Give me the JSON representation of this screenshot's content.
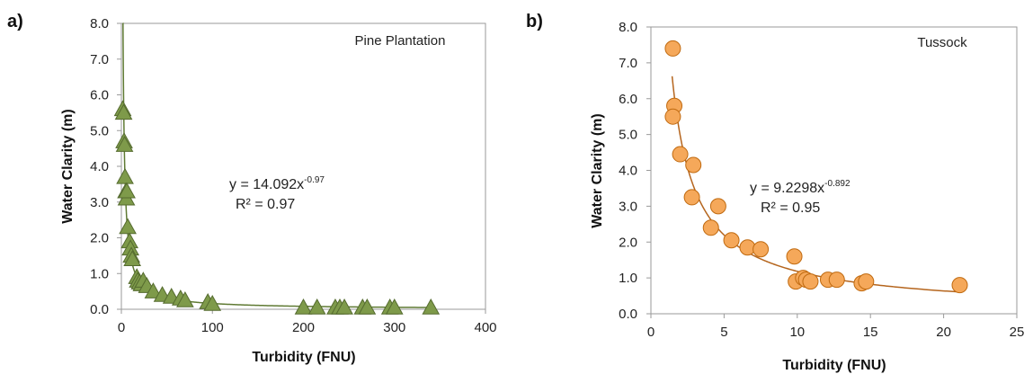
{
  "chart_data": [
    {
      "panel_label": "a)",
      "type": "scatter",
      "title": "",
      "annotation": "Pine Plantation",
      "xlabel": "Turbidity (FNU)",
      "ylabel": "Water Clarity (m)",
      "xlim": [
        0,
        400
      ],
      "ylim": [
        0,
        8
      ],
      "xticks": [
        0,
        100,
        200,
        300,
        400
      ],
      "yticks": [
        0,
        1,
        2,
        3,
        4,
        5,
        6,
        7,
        8
      ],
      "xtick_labels": [
        "0",
        "100",
        "200",
        "300",
        "400"
      ],
      "ytick_labels": [
        "0.0",
        "1.0",
        "2.0",
        "3.0",
        "4.0",
        "5.0",
        "6.0",
        "7.0",
        "8.0"
      ],
      "marker": "triangle",
      "marker_color": "#7e9a4a",
      "marker_edge": "#556b2f",
      "trend_color": "#5f7a33",
      "grid": false,
      "equation": "y = 14.092x",
      "equation_exp": "-0.97",
      "r2_label": "R² = 0.97",
      "fit": {
        "a": 14.092,
        "b": -0.97
      },
      "series": [
        {
          "x": [
            1.5,
            2.5,
            3,
            3.5,
            4,
            5,
            5.5,
            6,
            7,
            9,
            10,
            11,
            12,
            17,
            18,
            20,
            22,
            24,
            28,
            35,
            45,
            55,
            65,
            70,
            95,
            100,
            200,
            215,
            235,
            240,
            245,
            265,
            270,
            295,
            300,
            340
          ],
          "y": [
            5.6,
            5.5,
            4.7,
            4.6,
            3.7,
            3.3,
            3.1,
            3.3,
            2.3,
            1.9,
            1.7,
            1.5,
            1.4,
            0.9,
            0.8,
            0.75,
            0.7,
            0.8,
            0.65,
            0.5,
            0.4,
            0.35,
            0.3,
            0.25,
            0.2,
            0.15,
            0.05,
            0.05,
            0.05,
            0.05,
            0.05,
            0.05,
            0.05,
            0.05,
            0.05,
            0.05
          ]
        }
      ]
    },
    {
      "panel_label": "b)",
      "type": "scatter",
      "title": "",
      "annotation": "Tussock",
      "xlabel": "Turbidity (FNU)",
      "ylabel": "Water Clarity (m)",
      "xlim": [
        0,
        25
      ],
      "ylim": [
        0,
        8
      ],
      "xticks": [
        0,
        5,
        10,
        15,
        20,
        25
      ],
      "yticks": [
        0,
        1,
        2,
        3,
        4,
        5,
        6,
        7,
        8
      ],
      "xtick_labels": [
        "0",
        "5",
        "10",
        "15",
        "20",
        "25"
      ],
      "ytick_labels": [
        "0.0",
        "1.0",
        "2.0",
        "3.0",
        "4.0",
        "5.0",
        "6.0",
        "7.0",
        "8.0"
      ],
      "marker": "circle",
      "marker_color": "#f5a85a",
      "marker_edge": "#c06a10",
      "trend_color": "#b5651d",
      "grid": false,
      "equation": "y = 9.2298x",
      "equation_exp": "-0.892",
      "r2_label": "R² = 0.95",
      "fit": {
        "a": 9.2298,
        "b": -0.892
      },
      "series": [
        {
          "x": [
            1.5,
            1.6,
            1.5,
            2.0,
            2.9,
            2.8,
            4.1,
            4.6,
            5.5,
            6.6,
            7.5,
            9.8,
            9.9,
            10.4,
            10.6,
            10.9,
            12.1,
            12.7,
            14.4,
            14.7,
            21.1
          ],
          "y": [
            7.4,
            5.8,
            5.5,
            4.45,
            4.15,
            3.25,
            2.4,
            3.0,
            2.05,
            1.85,
            1.8,
            1.6,
            0.9,
            1.0,
            0.95,
            0.9,
            0.95,
            0.95,
            0.85,
            0.9,
            0.8
          ]
        }
      ]
    }
  ]
}
